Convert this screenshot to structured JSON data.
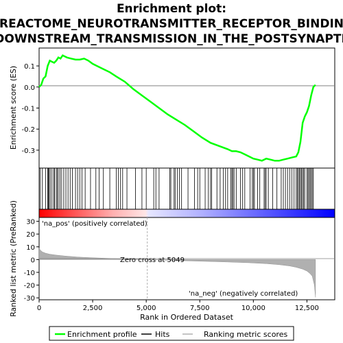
{
  "title_lines": [
    "Enrichment plot:",
    "REACTOME_NEUROTRANSMITTER_RECEPTOR_BINDIN",
    "_DOWNSTREAM_TRANSMISSION_IN_THE_POSTSYNAPTIC"
  ],
  "colors": {
    "es_curve": "#00ff00",
    "hit_line": "#000000",
    "zero_line": "#808080",
    "metric_fill": "#b0b0b0",
    "pos_label": "#ff0000",
    "neg_label": "#0000cc",
    "zero_cross_marker": "#b0b0b0"
  },
  "chart_data": [
    {
      "type": "line",
      "ylabel": "Enrichment score (ES)",
      "ylim": [
        -0.385,
        0.185
      ],
      "yticks": [
        0.1,
        0.0,
        -0.1,
        -0.2,
        -0.3
      ],
      "ytick_labels": [
        "0.1",
        "0.0",
        "-0.1",
        "-0.2",
        "-0.3"
      ],
      "xlim": [
        0,
        13800
      ],
      "series": [
        {
          "name": "Enrichment profile",
          "x": [
            0,
            100,
            200,
            300,
            400,
            500,
            600,
            700,
            800,
            900,
            1000,
            1100,
            1200,
            1300,
            1500,
            1700,
            1900,
            2100,
            2300,
            2500,
            2700,
            3000,
            3300,
            3600,
            4000,
            4400,
            4800,
            5200,
            5600,
            6000,
            6400,
            6800,
            7200,
            7600,
            8000,
            8400,
            8800,
            9000,
            9200,
            9400,
            9600,
            9800,
            10000,
            10200,
            10400,
            10600,
            10800,
            11000,
            11200,
            11400,
            11600,
            11800,
            12000,
            12100,
            12200,
            12300,
            12400,
            12500,
            12600,
            12700,
            12800,
            12900
          ],
          "y": [
            0.0,
            0.01,
            0.04,
            0.05,
            0.1,
            0.125,
            0.12,
            0.115,
            0.125,
            0.14,
            0.135,
            0.15,
            0.145,
            0.14,
            0.135,
            0.13,
            0.13,
            0.135,
            0.125,
            0.11,
            0.1,
            0.085,
            0.07,
            0.05,
            0.025,
            -0.01,
            -0.04,
            -0.07,
            -0.1,
            -0.13,
            -0.155,
            -0.18,
            -0.21,
            -0.24,
            -0.265,
            -0.28,
            -0.295,
            -0.305,
            -0.305,
            -0.31,
            -0.32,
            -0.33,
            -0.34,
            -0.345,
            -0.35,
            -0.34,
            -0.345,
            -0.35,
            -0.35,
            -0.345,
            -0.34,
            -0.335,
            -0.33,
            -0.31,
            -0.26,
            -0.17,
            -0.14,
            -0.12,
            -0.09,
            -0.04,
            0.0,
            0.01
          ]
        }
      ]
    },
    {
      "type": "scatter",
      "name": "Hits",
      "x": [
        50,
        150,
        300,
        400,
        430,
        470,
        520,
        600,
        680,
        720,
        800,
        850,
        900,
        980,
        1050,
        1150,
        1250,
        1350,
        1450,
        1550,
        1700,
        1800,
        1900,
        2000,
        2150,
        2400,
        2650,
        2800,
        3000,
        3300,
        3600,
        3700,
        3800,
        3900,
        4100,
        4500,
        4800,
        5000,
        5350,
        5450,
        5600,
        6100,
        6150,
        6300,
        6350,
        6450,
        6550,
        6650,
        6950,
        7250,
        7400,
        7500,
        7750,
        7900,
        8000,
        8050,
        8300,
        8450,
        8600,
        8700,
        8800,
        8950,
        9000,
        9050,
        9100,
        9200,
        9400,
        9500,
        9600,
        9850,
        9950,
        10000,
        10050,
        10200,
        10300,
        10500,
        10550,
        10600,
        10700,
        10900,
        11100,
        11300,
        11400,
        11500,
        11600,
        11700,
        11800,
        11900,
        12000,
        12050,
        12100,
        12150,
        12200,
        12250,
        12300,
        12350,
        12400,
        12500,
        12550,
        12600,
        12650,
        12700,
        12750,
        12800
      ]
    },
    {
      "type": "area",
      "ylabel": "Ranked list metric (PreRanked)",
      "xlabel": "Rank in Ordered Dataset",
      "ylim": [
        -31.5,
        33
      ],
      "yticks": [
        30,
        20,
        10,
        0,
        -10,
        -20,
        -30
      ],
      "ytick_labels": [
        "30",
        "20",
        "10",
        "0",
        "-10",
        "-20",
        "-30"
      ],
      "xlim": [
        0,
        13800
      ],
      "xticks": [
        0,
        2500,
        5000,
        7500,
        10000,
        12500
      ],
      "xtick_labels": [
        "0",
        "2,500",
        "5,000",
        "7,500",
        "10,000",
        "12,500"
      ],
      "series": [
        {
          "name": "Ranking metric scores",
          "x": [
            0,
            50,
            150,
            300,
            500,
            800,
            1200,
            1800,
            2500,
            3300,
            4000,
            4600,
            5049,
            5800,
            6800,
            7800,
            8800,
            9800,
            10600,
            11200,
            11700,
            12000,
            12300,
            12500,
            12650,
            12750,
            12850,
            12900
          ],
          "y": [
            9.0,
            7.5,
            6.0,
            5.0,
            4.2,
            3.5,
            2.8,
            2.0,
            1.4,
            0.9,
            0.6,
            0.3,
            0.0,
            -0.4,
            -0.9,
            -1.4,
            -1.9,
            -2.5,
            -3.2,
            -4.0,
            -5.0,
            -6.0,
            -7.5,
            -9.0,
            -11.0,
            -13.0,
            -20.0,
            -29.5
          ]
        }
      ],
      "annotations": {
        "pos_label": "'na_pos' (positively correlated)",
        "neg_label": "'na_neg' (negatively correlated)",
        "zero_cross": "Zero cross at 5049",
        "zero_cross_rank": 5049
      }
    }
  ],
  "legend": {
    "items": [
      {
        "label": "Enrichment profile",
        "swatch": "green-line"
      },
      {
        "label": "Hits",
        "swatch": "black-line"
      },
      {
        "label": "Ranking metric scores",
        "swatch": "gray-line"
      }
    ]
  }
}
